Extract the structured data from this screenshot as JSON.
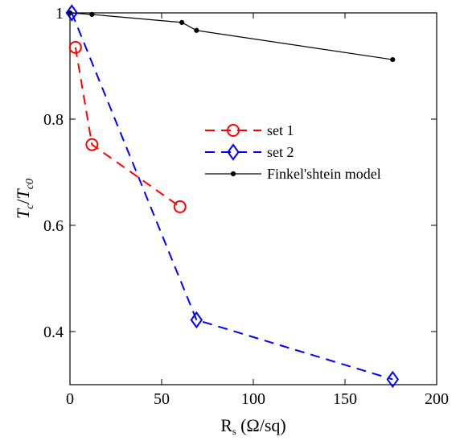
{
  "chart_data": {
    "type": "line",
    "title": "",
    "xlabel": "R_s (Ω/sq)",
    "ylabel": "T_c / T_c0",
    "xlim": [
      0,
      200
    ],
    "ylim": [
      0.3,
      1.0
    ],
    "xticks": [
      0,
      50,
      100,
      150,
      200
    ],
    "yticks": [
      0.4,
      0.6,
      0.8,
      1
    ],
    "grid": false,
    "legend_position": "center-right",
    "series": [
      {
        "name": "set 1",
        "color": "#ff0000",
        "line_style": "dashed",
        "marker": "circle",
        "x": [
          3,
          12,
          60
        ],
        "y": [
          0.935,
          0.752,
          0.635
        ]
      },
      {
        "name": "set 2",
        "color": "#0000ff",
        "line_style": "dashed",
        "marker": "diamond",
        "x": [
          1,
          69,
          176
        ],
        "y": [
          1.0,
          0.422,
          0.31
        ]
      },
      {
        "name": "Finkel'shtein model",
        "color": "#000000",
        "line_style": "solid",
        "marker": "dot",
        "x": [
          0,
          12,
          61,
          69,
          176
        ],
        "y": [
          1.0,
          0.997,
          0.982,
          0.967,
          0.912
        ]
      }
    ]
  }
}
